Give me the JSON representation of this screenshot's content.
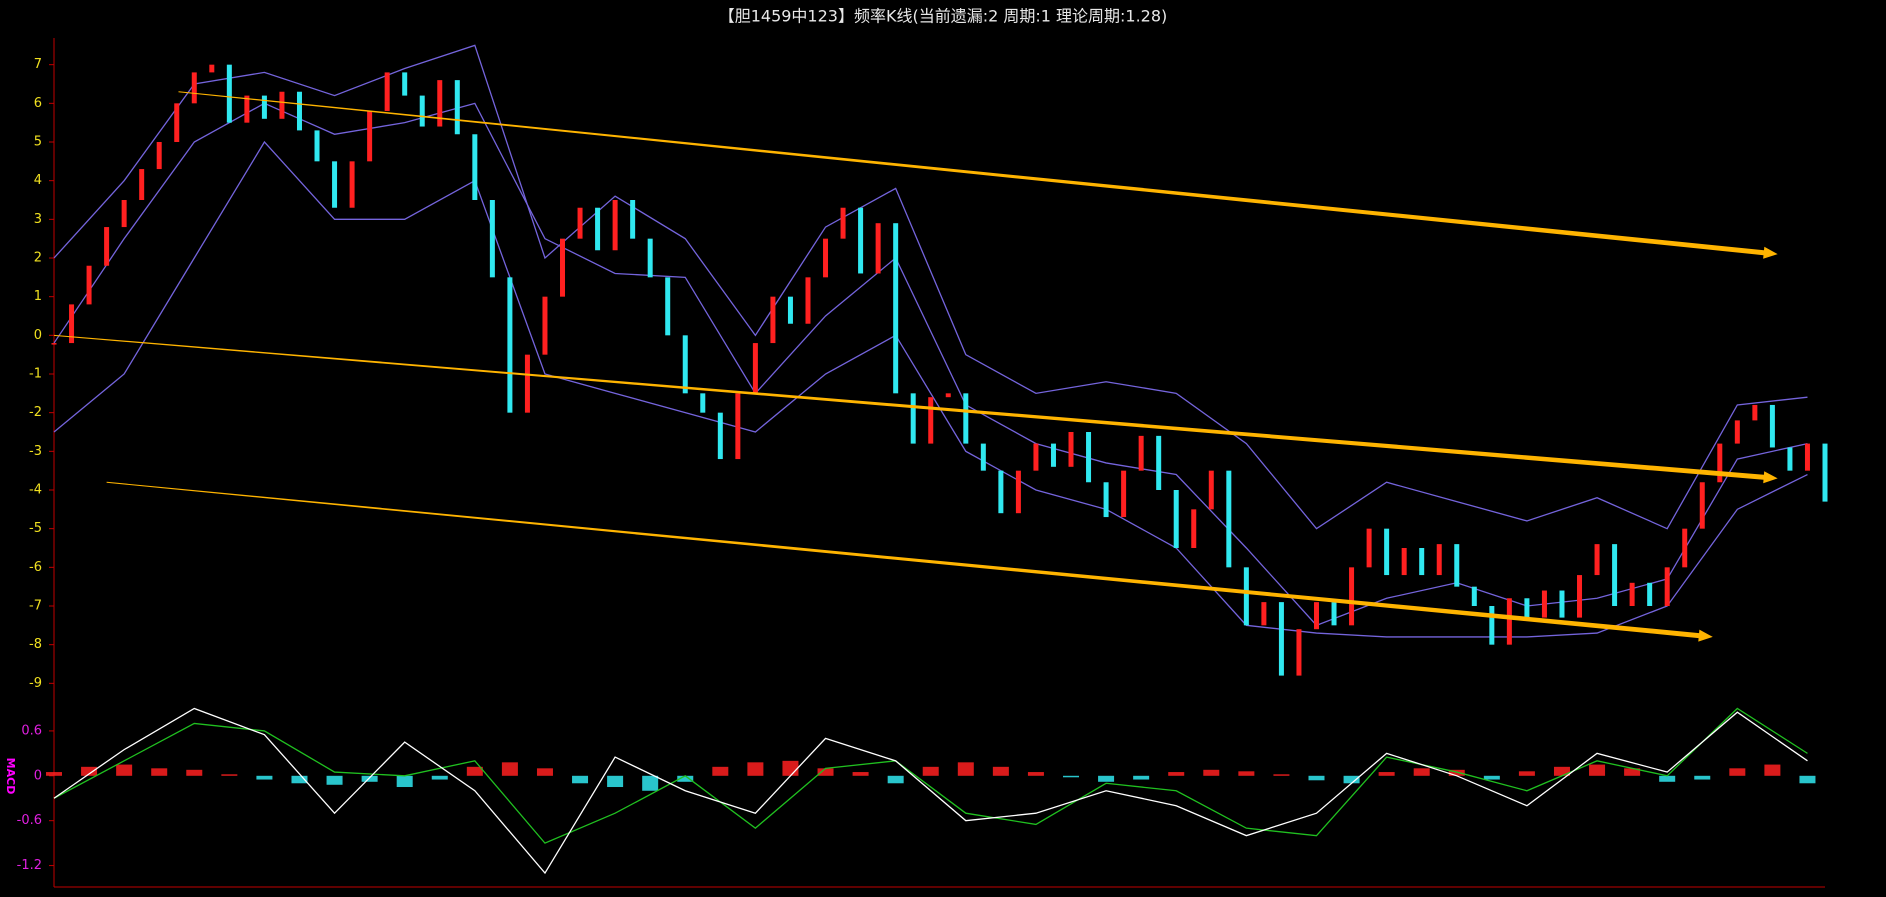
{
  "chart_data": {
    "type": "candlestick",
    "title": "【胆1459中123】频率K线(当前遗漏:2 周期:1 理论周期:1.28)",
    "xlim": [
      0,
      101
    ],
    "ylim": [
      -10,
      8
    ],
    "yticks": [
      7,
      6,
      5,
      4,
      3,
      2,
      1,
      0,
      -1,
      -2,
      -3,
      -4,
      -5,
      -6,
      -7,
      -8,
      -9
    ],
    "up_color": "#ff2020",
    "down_color": "#30e8f0",
    "close": [
      -0.2,
      0.8,
      1.8,
      2.8,
      3.5,
      4.3,
      5,
      6,
      6.8,
      7,
      5.5,
      6.2,
      5.6,
      6.3,
      5.3,
      4.5,
      3.3,
      4.5,
      5.8,
      6.8,
      6.2,
      5.4,
      6.6,
      5.2,
      3.5,
      1.5,
      -2,
      -0.5,
      1,
      2.5,
      3.3,
      2.2,
      3.5,
      2.5,
      1.5,
      0,
      -1.5,
      -2,
      -3.2,
      -1.5,
      -0.2,
      1,
      0.3,
      1.5,
      2.5,
      3.3,
      1.6,
      2.9,
      -1.5,
      -2.8,
      -1.6,
      -1.5,
      -2.8,
      -3.5,
      -4.6,
      -3.5,
      -2.8,
      -3.4,
      -2.5,
      -3.8,
      -4.7,
      -3.5,
      -2.6,
      -4,
      -5.5,
      -4.5,
      -3.5,
      -6,
      -7.5,
      -6.9,
      -8.8,
      -7.6,
      -6.9,
      -7.5,
      -6,
      -5,
      -6.2,
      -5.5,
      -6.2,
      -5.4,
      -6.5,
      -7,
      -8,
      -6.8,
      -7.3,
      -6.6,
      -7.3,
      -6.2,
      -5.4,
      -7,
      -6.4,
      -7,
      -6,
      -5,
      -3.8,
      -2.8,
      -2.2,
      -1.8,
      -2.9,
      -3.5,
      -2.8,
      -4.3
    ],
    "bands": {
      "color": "#7464dc",
      "x": [
        0,
        4,
        8,
        12,
        16,
        20,
        24,
        28,
        32,
        36,
        40,
        44,
        48,
        52,
        56,
        60,
        64,
        68,
        72,
        76,
        80,
        84,
        88,
        92,
        96,
        100
      ],
      "upper": [
        2,
        4,
        6.5,
        6.8,
        6.2,
        6.9,
        7.5,
        2,
        3.6,
        2.5,
        0,
        2.8,
        3.8,
        -0.5,
        -1.5,
        -1.2,
        -1.5,
        -2.8,
        -5,
        -3.8,
        -4.3,
        -4.8,
        -4.2,
        -5,
        -1.8,
        -1.6
      ],
      "middle": [
        -0.2,
        2.5,
        5,
        6,
        5.2,
        5.5,
        6,
        2.5,
        1.6,
        1.5,
        -1.5,
        0.5,
        2,
        -1.8,
        -2.8,
        -3.3,
        -3.6,
        -5.5,
        -7.5,
        -6.8,
        -6.4,
        -7,
        -6.8,
        -6.3,
        -3.2,
        -2.8
      ],
      "lower": [
        -2.5,
        -1,
        2,
        5,
        3,
        3,
        4,
        -1,
        -1.5,
        -2,
        -2.5,
        -1,
        0,
        -3,
        -4,
        -4.5,
        -5.5,
        -7.5,
        -7.7,
        -7.8,
        -7.8,
        -7.8,
        -7.7,
        -7,
        -4.5,
        -3.6
      ]
    },
    "trend_lines": [
      {
        "start": [
          7.1,
          6.3
        ],
        "end": [
          98.3,
          2.1
        ]
      },
      {
        "start": [
          0,
          0
        ],
        "end": [
          98.3,
          -3.7
        ]
      },
      {
        "start": [
          3,
          -3.8
        ],
        "end": [
          94.6,
          -7.8
        ]
      }
    ],
    "trend_color": "#ffb400",
    "macd": {
      "label": "MACD",
      "ylim": [
        -1.5,
        1
      ],
      "yticks": [
        0.6,
        0,
        -0.6,
        -1.2
      ],
      "x": [
        0,
        4,
        8,
        12,
        16,
        20,
        24,
        28,
        32,
        36,
        40,
        44,
        48,
        52,
        56,
        60,
        64,
        68,
        72,
        76,
        80,
        84,
        88,
        92,
        96,
        100
      ],
      "dif": [
        -0.3,
        0.35,
        0.9,
        0.55,
        -0.5,
        0.45,
        -0.2,
        -1.3,
        0.25,
        -0.2,
        -0.5,
        0.5,
        0.2,
        -0.6,
        -0.5,
        -0.2,
        -0.4,
        -0.8,
        -0.5,
        0.3,
        0,
        -0.4,
        0.3,
        0.05,
        0.85,
        0.2
      ],
      "dea": [
        -0.3,
        0.2,
        0.7,
        0.6,
        0.05,
        0,
        0.2,
        -0.9,
        -0.5,
        0,
        -0.7,
        0.1,
        0.2,
        -0.5,
        -0.65,
        -0.1,
        -0.2,
        -0.7,
        -0.8,
        0.25,
        0.05,
        -0.2,
        0.2,
        0,
        0.9,
        0.3
      ],
      "hist_x": [
        0,
        2,
        4,
        6,
        8,
        10,
        12,
        14,
        16,
        18,
        20,
        22,
        24,
        26,
        28,
        30,
        32,
        34,
        36,
        38,
        40,
        42,
        44,
        46,
        48,
        50,
        52,
        54,
        56,
        58,
        60,
        62,
        64,
        66,
        68,
        70,
        72,
        74,
        76,
        78,
        80,
        82,
        84,
        86,
        88,
        90,
        92,
        94,
        96,
        98,
        100
      ],
      "hist": [
        0.05,
        0.12,
        0.15,
        0.1,
        0.08,
        0.02,
        -0.05,
        -0.1,
        -0.12,
        -0.08,
        -0.15,
        -0.05,
        0.12,
        0.18,
        0.1,
        -0.1,
        -0.15,
        -0.2,
        -0.08,
        0.12,
        0.18,
        0.2,
        0.1,
        0.05,
        -0.1,
        0.12,
        0.18,
        0.12,
        0.05,
        -0.02,
        -0.08,
        -0.05,
        0.05,
        0.08,
        0.06,
        0.02,
        -0.06,
        -0.1,
        0.05,
        0.1,
        0.08,
        -0.05,
        0.06,
        0.12,
        0.15,
        0.1,
        -0.08,
        -0.05,
        0.1,
        0.15,
        -0.1
      ],
      "dif_color": "#ffffff",
      "dea_color": "#20c020"
    }
  }
}
